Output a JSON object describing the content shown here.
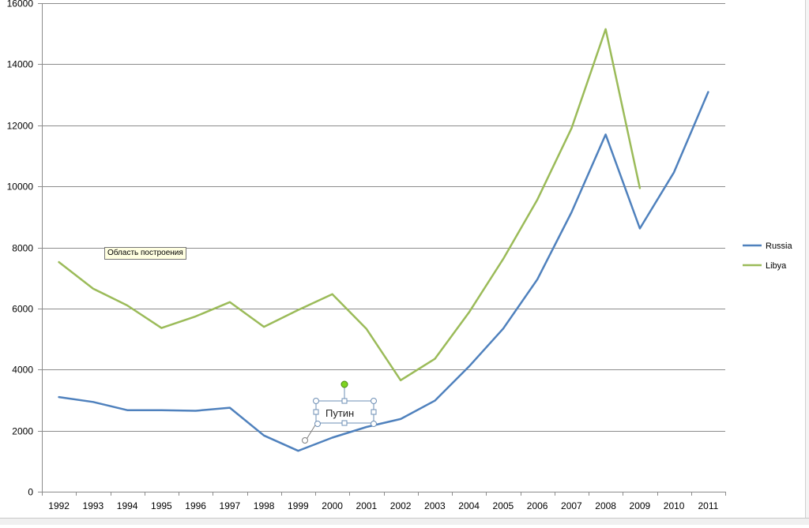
{
  "chart_data": {
    "type": "line",
    "x": [
      "1992",
      "1993",
      "1994",
      "1995",
      "1996",
      "1997",
      "1998",
      "1999",
      "2000",
      "2001",
      "2002",
      "2003",
      "2004",
      "2005",
      "2006",
      "2007",
      "2008",
      "2009",
      "2010",
      "2011"
    ],
    "series": [
      {
        "name": "Russia",
        "color": "#4f81bd",
        "values": [
          3100,
          2940,
          2670,
          2670,
          2650,
          2750,
          1840,
          1340,
          1770,
          2120,
          2380,
          2980,
          4100,
          5340,
          6950,
          9150,
          11700,
          8620,
          10460,
          13090
        ]
      },
      {
        "name": "Libya",
        "color": "#9bbb59",
        "values": [
          7520,
          6650,
          6100,
          5360,
          5740,
          6210,
          5400,
          5950,
          6470,
          5330,
          3650,
          4350,
          5870,
          7620,
          9560,
          11900,
          15150,
          9940,
          null,
          null
        ]
      }
    ],
    "ylim": [
      0,
      16000
    ],
    "yticks": [
      0,
      2000,
      4000,
      6000,
      8000,
      10000,
      12000,
      14000,
      16000
    ],
    "grid": true,
    "legend": "right",
    "annotations": [
      {
        "text": "Путин"
      }
    ]
  },
  "tooltip": {
    "text": "Область построения"
  }
}
